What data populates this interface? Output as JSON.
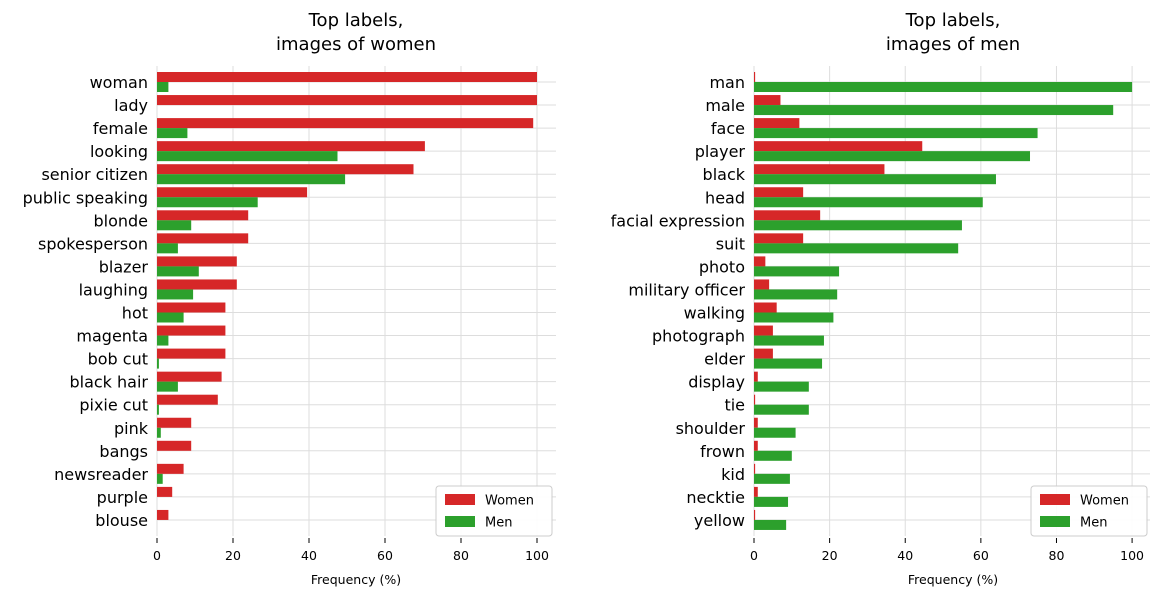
{
  "colors": {
    "women": "#d62728",
    "men": "#2ca02c",
    "grid": "#dddddd",
    "legend_border": "#cccccc"
  },
  "chart_data": [
    {
      "type": "bar",
      "orientation": "horizontal",
      "title_line1": "Top labels,",
      "title_line2": "images of women",
      "xlabel": "Frequency (%)",
      "xlim": [
        0,
        105
      ],
      "xticks": [
        "0",
        "20",
        "40",
        "60",
        "80",
        "100"
      ],
      "grid": true,
      "legend_position": "lower right",
      "categories": [
        "woman",
        "lady",
        "female",
        "looking",
        "senior citizen",
        "public speaking",
        "blonde",
        "spokesperson",
        "blazer",
        "laughing",
        "hot",
        "magenta",
        "bob cut",
        "black hair",
        "pixie cut",
        "pink",
        "bangs",
        "newsreader",
        "purple",
        "blouse"
      ],
      "series": [
        {
          "name": "Women",
          "values": [
            100,
            100,
            99,
            70.5,
            67.5,
            39.5,
            24,
            24,
            21,
            21,
            18,
            18,
            18,
            17,
            16,
            9,
            9,
            7,
            4,
            3
          ]
        },
        {
          "name": "Men",
          "values": [
            3,
            0,
            8,
            47.5,
            49.5,
            26.5,
            9,
            5.5,
            11,
            9.5,
            7,
            3,
            0.5,
            5.5,
            0.5,
            1,
            0,
            1.5,
            0,
            0
          ]
        }
      ]
    },
    {
      "type": "bar",
      "orientation": "horizontal",
      "title_line1": "Top labels,",
      "title_line2": "images of men",
      "xlabel": "Frequency (%)",
      "xlim": [
        0,
        105
      ],
      "xticks": [
        "0",
        "20",
        "40",
        "60",
        "80",
        "100"
      ],
      "grid": true,
      "legend_position": "lower right",
      "categories": [
        "man",
        "male",
        "face",
        "player",
        "black",
        "head",
        "facial expression",
        "suit",
        "photo",
        "military officer",
        "walking",
        "photograph",
        "elder",
        "display",
        "tie",
        "shoulder",
        "frown",
        "kid",
        "necktie",
        "yellow"
      ],
      "series": [
        {
          "name": "Women",
          "values": [
            0.3,
            7,
            12,
            44.5,
            34.5,
            13,
            17.5,
            13,
            3,
            4,
            6,
            5,
            5,
            1,
            0.3,
            1,
            1,
            0.3,
            1,
            0.3
          ]
        },
        {
          "name": "Men",
          "values": [
            100,
            95,
            75,
            73,
            64,
            60.5,
            55,
            54,
            22.5,
            22,
            21,
            18.5,
            18,
            14.5,
            14.5,
            11,
            10,
            9.5,
            9,
            8.5
          ]
        }
      ]
    }
  ]
}
